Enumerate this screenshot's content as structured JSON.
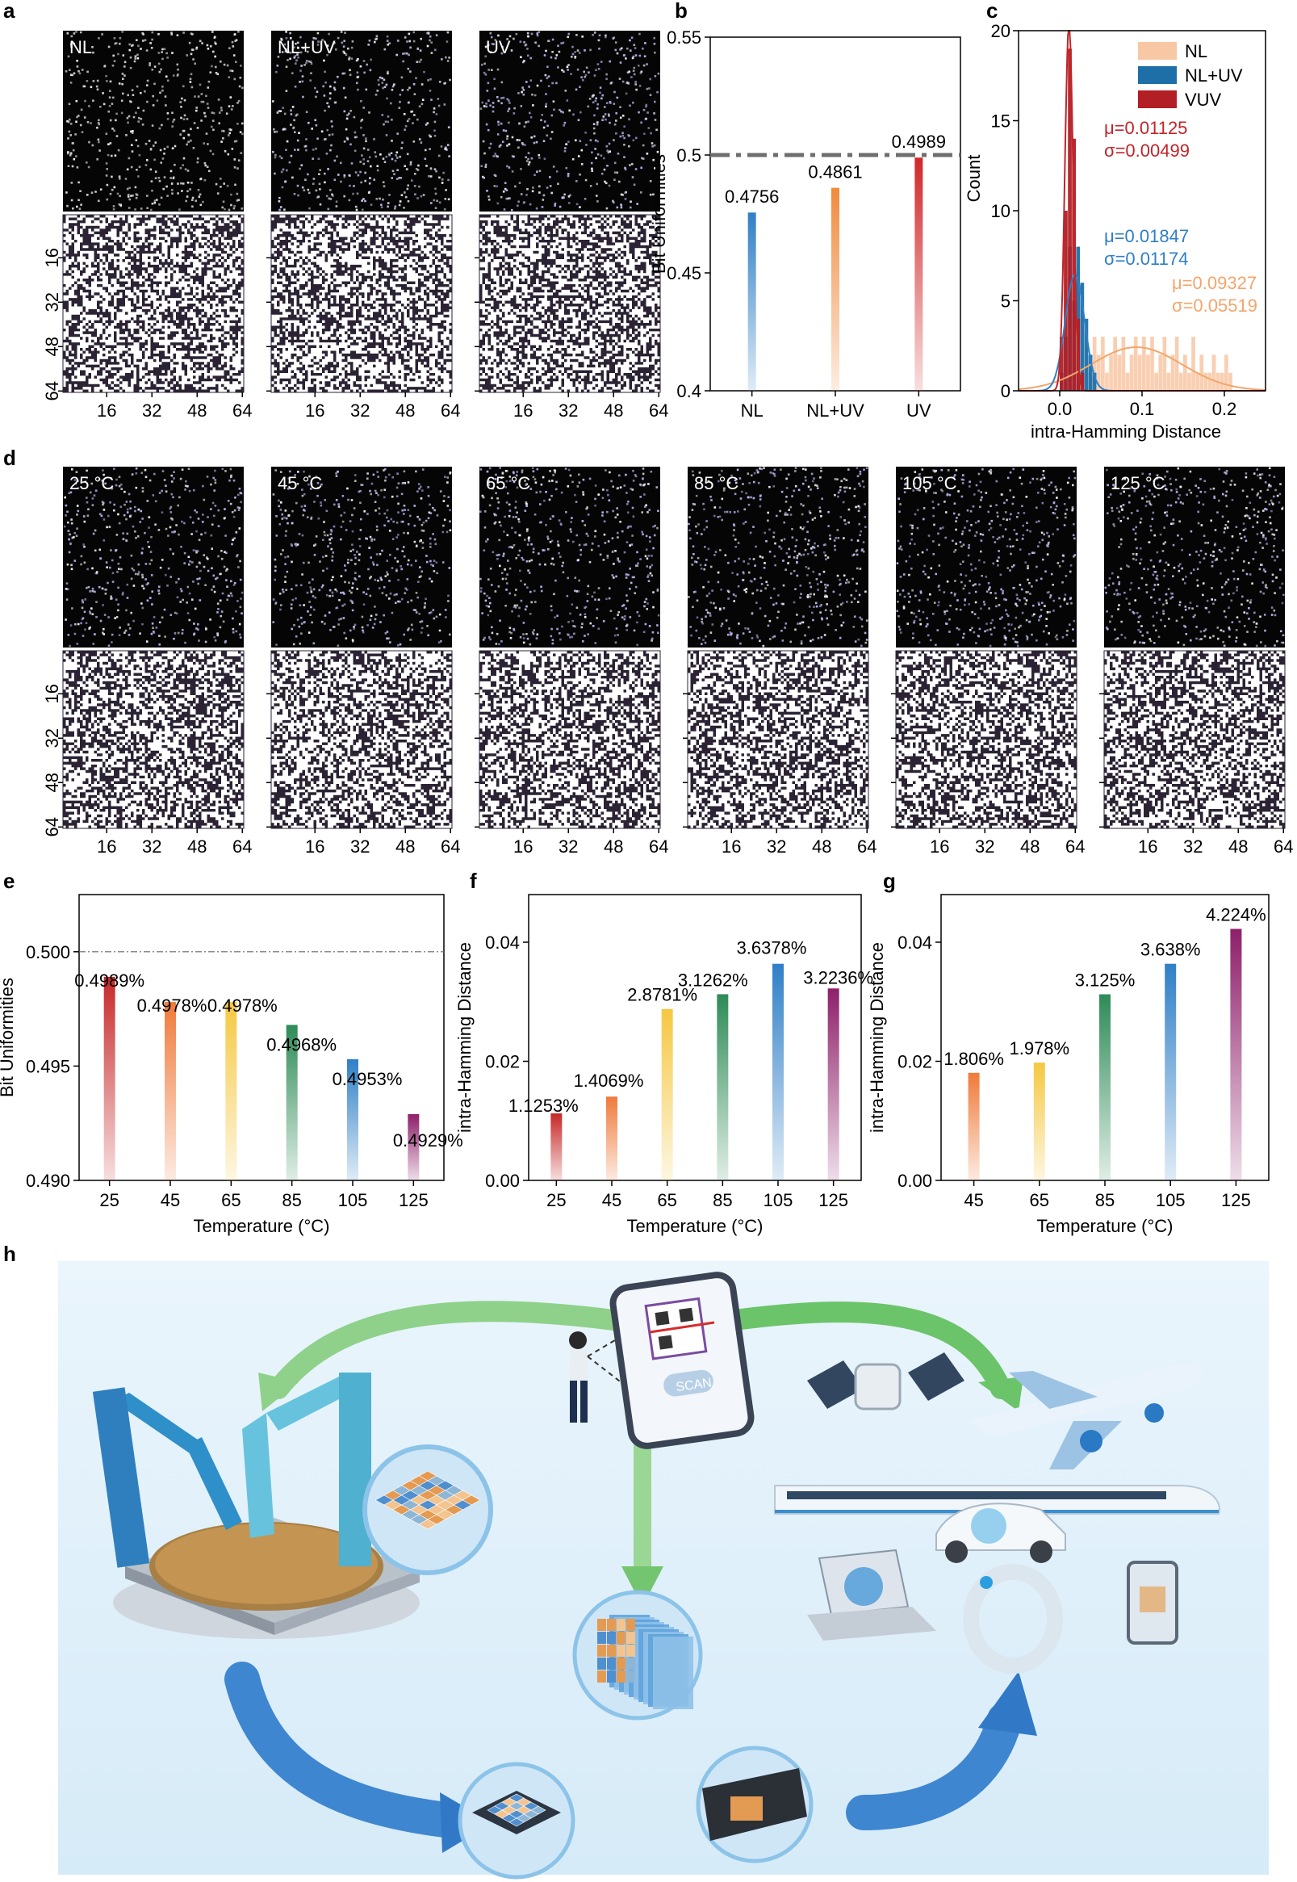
{
  "panels": {
    "a": {
      "label": "a",
      "images": [
        {
          "label": "NL",
          "tint": "#d8d8d8",
          "seed": 11
        },
        {
          "label": "NL+UV",
          "tint": "#c9c9ee",
          "seed": 23
        },
        {
          "label": "UV",
          "tint": "#b8b8f0",
          "seed": 37
        }
      ],
      "x_ticks": [
        "16",
        "32",
        "48",
        "64"
      ],
      "y_ticks": [
        "16",
        "32",
        "48",
        "64"
      ]
    },
    "d": {
      "label": "d",
      "images": [
        {
          "label": "25 °C",
          "tint": "#b5b5ee",
          "seed": 41
        },
        {
          "label": "45 °C",
          "tint": "#b5b5ee",
          "seed": 53
        },
        {
          "label": "65 °C",
          "tint": "#b5b5ee",
          "seed": 67
        },
        {
          "label": "85 °C",
          "tint": "#b5b5ee",
          "seed": 71
        },
        {
          "label": "105 °C",
          "tint": "#b5b5ee",
          "seed": 83
        },
        {
          "label": "125 °C",
          "tint": "#b5b5ee",
          "seed": 97
        }
      ],
      "x_ticks": [
        "16",
        "32",
        "48",
        "64"
      ],
      "y_ticks": [
        "16",
        "32",
        "48",
        "64"
      ]
    },
    "h": {
      "label": "h",
      "scan_text": "SCAN"
    }
  },
  "chart_data": [
    {
      "panel": "b",
      "type": "bar",
      "categories": [
        "NL",
        "NL+UV",
        "UV"
      ],
      "values": [
        0.4756,
        0.4861,
        0.4989
      ],
      "data_labels": [
        "0.4756",
        "0.4861",
        "0.4989"
      ],
      "ylabel": "Bit Uniformities",
      "ylim": [
        0.4,
        0.55
      ],
      "yticks": [
        "0.4",
        "0.45",
        "0.5",
        "0.55"
      ],
      "reference_line": 0.5,
      "colors": [
        "#2f7fc6",
        "#f08a3c",
        "#d0282a"
      ]
    },
    {
      "panel": "c",
      "type": "histogram",
      "xlabel": "intra-Hamming Distance",
      "ylabel": "Count",
      "xlim": [
        -0.05,
        0.25
      ],
      "ylim": [
        0,
        20
      ],
      "xticks": [
        "0.0",
        "0.1",
        "0.2"
      ],
      "yticks": [
        "0",
        "5",
        "10",
        "15",
        "20"
      ],
      "legend": [
        "NL",
        "NL+UV",
        "VUV"
      ],
      "legend_position": "top-right",
      "series": [
        {
          "name": "NL",
          "color": "#f4a56b",
          "fill": "#f8c7a4",
          "mu": 0.09327,
          "sigma": 0.05519,
          "mu_label": "μ=0.09327",
          "sigma_label": "σ=0.05519",
          "bins": [
            [
              0.035,
              1
            ],
            [
              0.04,
              3
            ],
            [
              0.045,
              2
            ],
            [
              0.05,
              3
            ],
            [
              0.055,
              1
            ],
            [
              0.06,
              2
            ],
            [
              0.065,
              3
            ],
            [
              0.07,
              2
            ],
            [
              0.075,
              3
            ],
            [
              0.08,
              1
            ],
            [
              0.085,
              2
            ],
            [
              0.09,
              3
            ],
            [
              0.095,
              2
            ],
            [
              0.1,
              3
            ],
            [
              0.105,
              2
            ],
            [
              0.11,
              3
            ],
            [
              0.115,
              1
            ],
            [
              0.12,
              2
            ],
            [
              0.125,
              3
            ],
            [
              0.13,
              1
            ],
            [
              0.135,
              2
            ],
            [
              0.14,
              3
            ],
            [
              0.145,
              1
            ],
            [
              0.15,
              2
            ],
            [
              0.155,
              1
            ],
            [
              0.16,
              3
            ],
            [
              0.165,
              1
            ],
            [
              0.17,
              2
            ],
            [
              0.175,
              1
            ],
            [
              0.18,
              1
            ],
            [
              0.185,
              2
            ],
            [
              0.19,
              1
            ],
            [
              0.195,
              1
            ],
            [
              0.2,
              2
            ],
            [
              0.205,
              1
            ]
          ]
        },
        {
          "name": "NL+UV",
          "color": "#2f7fc6",
          "fill": "#1e6fa8",
          "mu": 0.01847,
          "sigma": 0.01174,
          "mu_label": "μ=0.01847",
          "sigma_label": "σ=0.01174",
          "bins": [
            [
              0.0,
              1
            ],
            [
              0.005,
              3
            ],
            [
              0.01,
              8
            ],
            [
              0.015,
              5
            ],
            [
              0.02,
              8
            ],
            [
              0.025,
              6
            ],
            [
              0.03,
              4
            ],
            [
              0.035,
              2
            ],
            [
              0.04,
              1
            ]
          ]
        },
        {
          "name": "VUV",
          "color": "#c0252a",
          "fill": "#b21f24",
          "mu": 0.01125,
          "sigma": 0.00499,
          "mu_label": "μ=0.01125",
          "sigma_label": "σ=0.00499",
          "bins": [
            [
              0.0,
              3
            ],
            [
              0.005,
              10
            ],
            [
              0.01,
              19
            ],
            [
              0.015,
              14
            ],
            [
              0.02,
              4
            ],
            [
              0.025,
              1
            ]
          ]
        }
      ]
    },
    {
      "panel": "e",
      "type": "bar",
      "categories": [
        "25",
        "45",
        "65",
        "85",
        "105",
        "125"
      ],
      "values": [
        0.4989,
        0.4978,
        0.4978,
        0.4968,
        0.4953,
        0.4929
      ],
      "data_labels": [
        "0.4989%",
        "0.4978%",
        "0.4978%",
        "0.4968%",
        "0.4953%",
        "0.4929%"
      ],
      "xlabel": "Temperature (°C)",
      "ylabel": "Bit Uniformities",
      "ylim": [
        0.49,
        0.5025
      ],
      "yticks": [
        "0.490",
        "0.495",
        "0.500"
      ],
      "reference_line": 0.5,
      "colors": [
        "#c62828",
        "#ef7a3a",
        "#f5c842",
        "#2e8b57",
        "#2f7fc6",
        "#8e1f6a"
      ]
    },
    {
      "panel": "f",
      "type": "bar",
      "categories": [
        "25",
        "45",
        "65",
        "85",
        "105",
        "125"
      ],
      "values": [
        0.011253,
        0.014069,
        0.028781,
        0.031262,
        0.036378,
        0.032236
      ],
      "data_labels": [
        "1.1253%",
        "1.4069%",
        "2.8781%",
        "3.1262%",
        "3.6378%",
        "3.2236%"
      ],
      "xlabel": "Temperature (°C)",
      "ylabel": "intra-Hamming Distance",
      "ylim": [
        0,
        0.048
      ],
      "yticks": [
        "0.00",
        "0.02",
        "0.04"
      ],
      "colors": [
        "#c62828",
        "#ef7a3a",
        "#f5c842",
        "#2e8b57",
        "#2f7fc6",
        "#8e1f6a"
      ]
    },
    {
      "panel": "g",
      "type": "bar",
      "categories": [
        "45",
        "65",
        "85",
        "105",
        "125"
      ],
      "values": [
        0.01806,
        0.01978,
        0.03125,
        0.03638,
        0.04224
      ],
      "data_labels": [
        "1.806%",
        "1.978%",
        "3.125%",
        "3.638%",
        "4.224%"
      ],
      "xlabel": "Temperature (°C)",
      "ylabel": "intra-Hamming Distance",
      "ylim": [
        0,
        0.048
      ],
      "yticks": [
        "0.00",
        "0.02",
        "0.04"
      ],
      "colors": [
        "#ef7a3a",
        "#f5c842",
        "#2e8b57",
        "#2f7fc6",
        "#8e1f6a"
      ]
    }
  ]
}
